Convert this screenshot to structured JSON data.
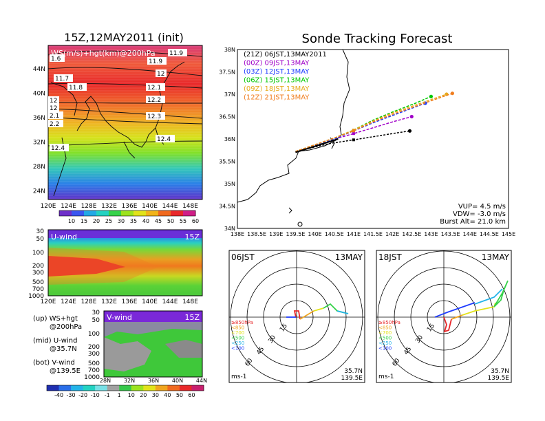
{
  "left": {
    "title": "15Z,12MAY2011 (init)",
    "map": {
      "label": "WS(m/s)+hgt(km)@200hPa",
      "lat_ticks": [
        "44N",
        "40N",
        "36N",
        "32N",
        "28N",
        "24N"
      ],
      "lon_ticks": [
        "120E",
        "124E",
        "128E",
        "132E",
        "136E",
        "140E",
        "144E",
        "148E"
      ],
      "contours": [
        "1.6",
        "11.7",
        "11.8",
        "11.9",
        "12",
        "12",
        "12.1",
        "12.2",
        "12.3",
        "12.4",
        "12.4",
        "2.1",
        "2.2",
        "11.9",
        "12"
      ],
      "colorbar_labels": [
        "10",
        "15",
        "20",
        "25",
        "30",
        "35",
        "40",
        "45",
        "50",
        "55",
        "60"
      ],
      "colorbar_colors": [
        "#6e2fc9",
        "#3a56f0",
        "#22a8e6",
        "#23d2c2",
        "#36d24a",
        "#9ce31e",
        "#e2e31a",
        "#f1b319",
        "#f0691e",
        "#e8282a",
        "#d01e87"
      ]
    },
    "uwind": {
      "label": "U-wind",
      "time": "15Z",
      "p_ticks": [
        "30",
        "50",
        "100",
        "200",
        "300",
        "500",
        "700",
        "1000"
      ],
      "lon_ticks": [
        "120E",
        "124E",
        "128E",
        "132E",
        "136E",
        "140E",
        "144E",
        "148E"
      ]
    },
    "vwind": {
      "label": "V-wind",
      "time": "15Z",
      "p_ticks": [
        "30",
        "50",
        "100",
        "200",
        "300",
        "500",
        "700",
        "1000"
      ],
      "lat_ticks": [
        "28N",
        "32N",
        "36N",
        "40N",
        "44N"
      ]
    },
    "legend": [
      {
        "a": "(up) WS+hgt",
        "b": "@200hPa"
      },
      {
        "a": "(mid) U-wind",
        "b": "@35.7N"
      },
      {
        "a": "(bot) V-wind",
        "b": "@139.5E"
      }
    ],
    "wind_colorbar": {
      "labels": [
        "-40",
        "-30",
        "-20",
        "-10",
        "-1",
        "1",
        "10",
        "20",
        "30",
        "40",
        "50",
        "60"
      ],
      "colors": [
        "#1f2fb0",
        "#2a6ee8",
        "#23b3e8",
        "#23d2c2",
        "#77e0e6",
        "#a0a0a0",
        "#36c84a",
        "#9ce31e",
        "#e2e31a",
        "#f0a51e",
        "#f0691e",
        "#e8282a",
        "#c81e6e"
      ]
    }
  },
  "right": {
    "title": "Sonde Tracking Forecast",
    "track": {
      "lat_ticks": [
        "38N",
        "37.5N",
        "37N",
        "36.5N",
        "36N",
        "35.5N",
        "35N",
        "34.5N",
        "34N"
      ],
      "lon_ticks": [
        "138E",
        "138.5E",
        "139E",
        "139.5E",
        "140E",
        "140.5E",
        "141E",
        "141.5E",
        "142E",
        "142.5E",
        "143E",
        "143.5E",
        "144E",
        "144.5E",
        "145E"
      ],
      "legend": [
        {
          "text": "(21Z) 06JST,13MAY2011",
          "color": "#000000"
        },
        {
          "text": "(00Z) 09JST,13MAY",
          "color": "#a000c8"
        },
        {
          "text": "(03Z) 12JST,13MAY",
          "color": "#1e3cff"
        },
        {
          "text": "(06Z) 15JST,13MAY",
          "color": "#00c800"
        },
        {
          "text": "(09Z) 18JST,13MAY",
          "color": "#e6aa1e"
        },
        {
          "text": "(12Z) 21JST,13MAY",
          "color": "#f07d1e"
        }
      ],
      "params": [
        "VUP= 4.5 m/s",
        "VDW= -3.0 m/s",
        "Burst Alt= 21.0 km"
      ]
    },
    "hodo1": {
      "time": "06JST",
      "date": "13MAY",
      "lat": "35.7N",
      "lon": "139.5E",
      "unit": "ms-1"
    },
    "hodo2": {
      "time": "18JST",
      "date": "13MAY",
      "lat": "35.7N",
      "lon": "139.5E",
      "unit": "ms-1"
    },
    "hodo_rings": [
      "15",
      "30",
      "45",
      "60"
    ],
    "hodo_legend": [
      {
        "text": "≥850hPa",
        "color": "#e8282a"
      },
      {
        "text": "<850",
        "color": "#f0a51e"
      },
      {
        "text": "<700",
        "color": "#e2e31a"
      },
      {
        "text": "<500",
        "color": "#36d24a"
      },
      {
        "text": "<250",
        "color": "#23b3e8"
      },
      {
        "text": "<100",
        "color": "#1e3cff"
      }
    ]
  },
  "chart_data": [
    {
      "type": "heatmap",
      "title": "15Z,12MAY2011 (init)",
      "label": "WS(m/s)+hgt(km)@200hPa",
      "x_range": [
        "120E",
        "150E"
      ],
      "y_range": [
        "22N",
        "47N"
      ],
      "colorbar": [
        10,
        15,
        20,
        25,
        30,
        35,
        40,
        45,
        50,
        55,
        60
      ],
      "contour_labels_km": [
        1.6,
        11.7,
        11.8,
        11.9,
        12,
        12,
        12.1,
        12.2,
        12.3,
        12.4,
        12.4,
        2.1,
        2.2,
        11.9,
        12
      ]
    },
    {
      "type": "heatmap",
      "title": "U-wind",
      "x_range": [
        "120E",
        "150E"
      ],
      "y_axis_hPa": [
        30,
        50,
        100,
        200,
        300,
        500,
        700,
        1000
      ]
    },
    {
      "type": "heatmap",
      "title": "V-wind",
      "x_range": [
        "28N",
        "44N"
      ],
      "y_axis_hPa": [
        30,
        50,
        100,
        200,
        300,
        500,
        700,
        1000
      ]
    },
    {
      "type": "line",
      "title": "Sonde Tracking Forecast",
      "xlim": [
        138,
        145
      ],
      "ylim": [
        34,
        38
      ],
      "launch": [
        139.5,
        35.7
      ],
      "series": [
        {
          "name": "(21Z) 06JST,13MAY2011",
          "color": "#000000",
          "points": [
            [
              139.5,
              35.72
            ],
            [
              140.4,
              35.9
            ],
            [
              141.0,
              35.98
            ],
            [
              141.5,
              36.05
            ],
            [
              142.0,
              36.12
            ],
            [
              142.45,
              36.18
            ]
          ]
        },
        {
          "name": "(00Z) 09JST,13MAY",
          "color": "#a000c8",
          "points": [
            [
              139.5,
              35.72
            ],
            [
              140.4,
              35.97
            ],
            [
              141.0,
              36.12
            ],
            [
              141.5,
              36.25
            ],
            [
              142.0,
              36.38
            ],
            [
              142.5,
              36.5
            ]
          ]
        },
        {
          "name": "(03Z) 12JST,13MAY",
          "color": "#1e3cff",
          "points": [
            [
              139.5,
              35.72
            ],
            [
              140.5,
              36.0
            ],
            [
              141.0,
              36.18
            ],
            [
              141.5,
              36.36
            ],
            [
              142.3,
              36.62
            ],
            [
              142.85,
              36.8
            ]
          ]
        },
        {
          "name": "(06Z) 15JST,13MAY",
          "color": "#00c800",
          "points": [
            [
              139.5,
              35.72
            ],
            [
              140.5,
              36.02
            ],
            [
              141.0,
              36.2
            ],
            [
              141.5,
              36.42
            ],
            [
              142.0,
              36.6
            ],
            [
              142.6,
              36.8
            ],
            [
              143.0,
              36.95
            ]
          ]
        },
        {
          "name": "(09Z) 18JST,13MAY",
          "color": "#e6aa1e",
          "points": [
            [
              139.5,
              35.72
            ],
            [
              140.5,
              36.02
            ],
            [
              141.0,
              36.2
            ],
            [
              141.5,
              36.4
            ],
            [
              142.0,
              36.58
            ],
            [
              143.4,
              37.0
            ]
          ]
        },
        {
          "name": "(12Z) 21JST,13MAY",
          "color": "#f07d1e",
          "points": [
            [
              139.5,
              35.72
            ],
            [
              140.5,
              36.02
            ],
            [
              141.0,
              36.18
            ],
            [
              141.5,
              36.38
            ],
            [
              142.0,
              36.55
            ],
            [
              143.55,
              37.02
            ]
          ]
        }
      ]
    }
  ]
}
